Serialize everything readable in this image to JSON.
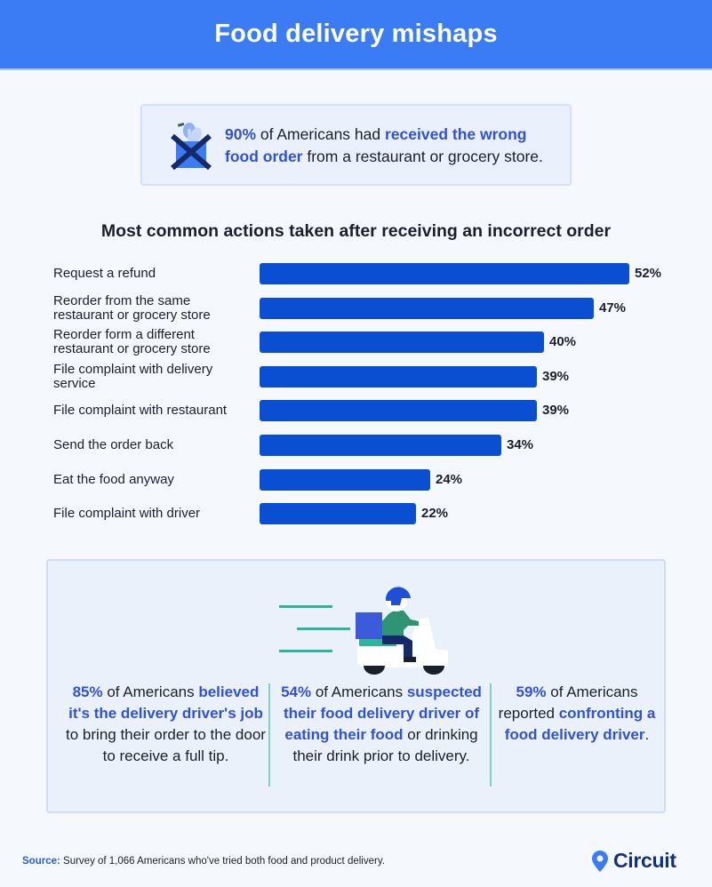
{
  "header": {
    "title": "Food delivery mishaps",
    "bg_color": "#3b7cf4"
  },
  "callout": {
    "icon": "grocery-bag-crossed-icon",
    "stat": "90%",
    "text_before": " of Americans had ",
    "highlight": "received the wrong food order",
    "text_after": " from a restaurant or grocery store."
  },
  "chart_data": {
    "type": "bar",
    "orientation": "horizontal",
    "title": "Most common actions taken after receiving an incorrect order",
    "categories": [
      "Request a refund",
      "Reorder from the same restaurant or grocery store",
      "Reorder form a different restaurant or grocery store",
      "File complaint with delivery service",
      "File complaint with restaurant",
      "Send the order back",
      "Eat the food anyway",
      "File complaint with driver"
    ],
    "values": [
      52,
      47,
      40,
      39,
      39,
      34,
      24,
      22
    ],
    "value_labels": [
      "52%",
      "47%",
      "40%",
      "39%",
      "39%",
      "34%",
      "24%",
      "22%"
    ],
    "unit": "%",
    "xlabel": "",
    "ylabel": "",
    "grid": false,
    "legend": null,
    "bar_color": "#0a4fd1"
  },
  "panel": {
    "illustration": "scooter-delivery-icon",
    "stats": [
      {
        "stat": "85%",
        "text_before": " of Americans ",
        "highlight": "believed it's the delivery driver's job",
        "text_after": " to bring their order to the door to receive a full tip."
      },
      {
        "stat": "54%",
        "text_before": " of Americans ",
        "highlight": "suspected their food delivery driver of eating their food",
        "text_after": " or drinking their drink prior to delivery."
      },
      {
        "stat": "59%",
        "text_before": " of Americans reported ",
        "highlight": "confronting a food delivery driver",
        "text_after": "."
      }
    ]
  },
  "footer": {
    "source_label": "Source:",
    "source_text": " Survey of 1,066 Americans who've tried both food and product delivery.",
    "logo_text": "Circuit",
    "logo_icon": "map-pin-icon"
  }
}
